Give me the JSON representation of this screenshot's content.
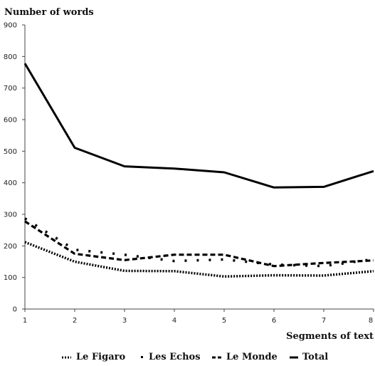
{
  "chart_data": {
    "type": "line",
    "ylabel": "Number of words",
    "xlabel": "Segments of text",
    "x": [
      1,
      2,
      3,
      4,
      5,
      6,
      7,
      8
    ],
    "xlim": [
      1,
      8
    ],
    "ylim": [
      0,
      900
    ],
    "yticks": [
      0,
      100,
      200,
      300,
      400,
      500,
      600,
      700,
      800,
      900
    ],
    "xticks": [
      1,
      2,
      3,
      4,
      5,
      6,
      7,
      8
    ],
    "grid": false,
    "legend_position": "bottom",
    "series": [
      {
        "name": "Le Figaro",
        "style": "dotted",
        "color": "#000000",
        "values": [
          212,
          150,
          121,
          120,
          103,
          107,
          106,
          120
        ]
      },
      {
        "name": "Les Echos",
        "style": "sparse-dotted",
        "color": "#000000",
        "values": [
          287,
          188,
          172,
          152,
          157,
          141,
          136,
          158
        ]
      },
      {
        "name": "Le Monde",
        "style": "dashed",
        "color": "#000000",
        "values": [
          278,
          175,
          155,
          172,
          172,
          136,
          146,
          154
        ]
      },
      {
        "name": "Total",
        "style": "solid",
        "color": "#000000",
        "values": [
          778,
          511,
          452,
          445,
          433,
          385,
          387,
          437
        ]
      }
    ]
  }
}
